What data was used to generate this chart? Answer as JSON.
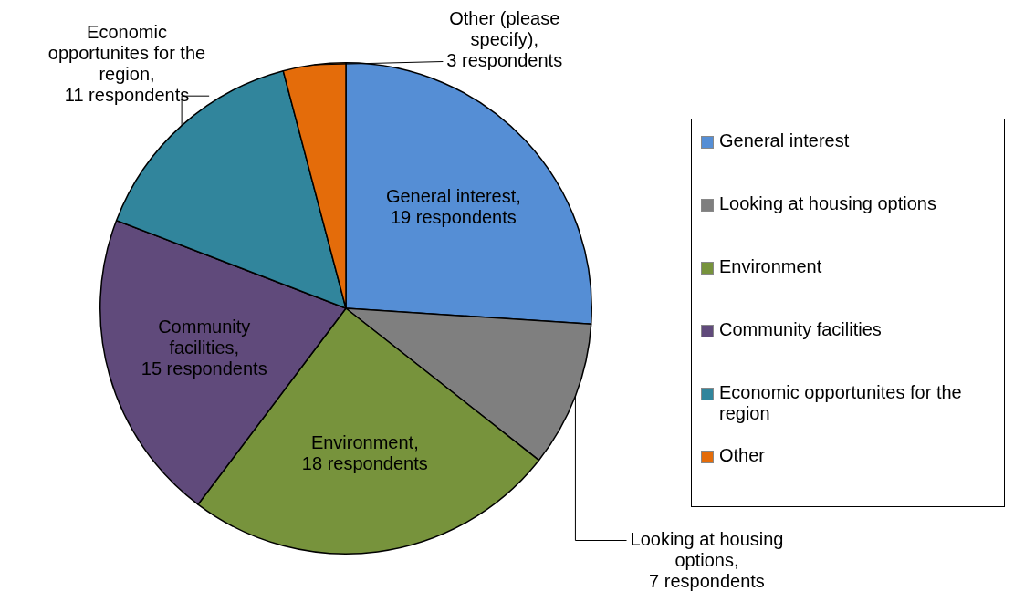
{
  "chart_data": {
    "type": "pie",
    "categories": [
      "General interest",
      "Looking at housing options",
      "Environment",
      "Community facilities",
      "Economic opportunites for the region",
      "Other"
    ],
    "values": [
      19,
      7,
      18,
      15,
      11,
      3
    ],
    "colors": [
      "#558ed5",
      "#7f7f7f",
      "#77933c",
      "#604a7b",
      "#31859c",
      "#e46c0a"
    ],
    "value_labels": [
      "General interest, 19 respondents",
      "Looking at housing options, 7 respondents",
      "Environment, 18 respondents",
      "Community facilities, 15 respondents",
      "Economic opportunites for the region, 11 respondents",
      "Other (please specify), 3 respondents"
    ],
    "legend": "right"
  }
}
